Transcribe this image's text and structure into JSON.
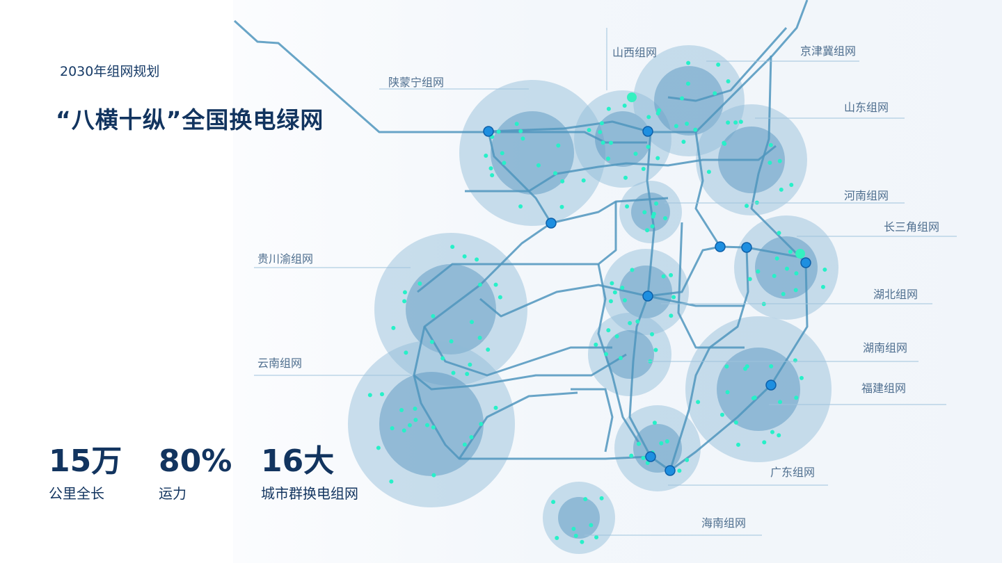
{
  "header": {
    "subtitle": "2030年组网规划",
    "title": "“八横十纵”全国换电绿网"
  },
  "stats": [
    {
      "value": "15万",
      "label": "公里全长"
    },
    {
      "value": "80%",
      "label": "运力"
    },
    {
      "value": "16大",
      "label": "城市群换电组网"
    }
  ],
  "regions": [
    "陕蒙宁组网",
    "山西组网",
    "京津冀组网",
    "山东组网",
    "河南组网",
    "长三角组网",
    "湖北组网",
    "湖南组网",
    "福建组网",
    "广东组网",
    "海南组网",
    "贵川渝组网",
    "云南组网"
  ],
  "colors": {
    "title": "#12345f",
    "circle_outer": "#8dbad6",
    "circle_inner": "#4f90bd",
    "line": "#4f95bd",
    "node": "#1e8fe0",
    "dot": "#27f0c8"
  }
}
